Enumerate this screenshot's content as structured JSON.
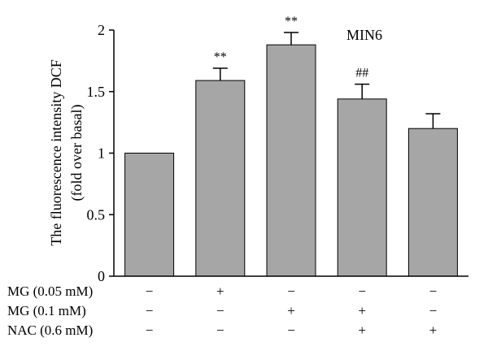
{
  "chart_data": {
    "type": "bar",
    "title": "MIN6",
    "ylabel_line1": "The fluorescence intensity DCF",
    "ylabel_line2": "(fold over basal)",
    "ylim": [
      0,
      2
    ],
    "yticks": [
      0,
      0.5,
      1,
      1.5,
      2
    ],
    "ytick_labels": [
      "0",
      "0.5",
      "1",
      "1.5",
      "2"
    ],
    "values": [
      1.0,
      1.59,
      1.88,
      1.44,
      1.2
    ],
    "errors": [
      0,
      0.1,
      0.1,
      0.12,
      0.12
    ],
    "significance": [
      "",
      "**",
      "**",
      "##",
      ""
    ],
    "bar_color": "#a6a6a6",
    "grid": false,
    "conditions": [
      {
        "label": "MG (0.05 mM)",
        "signs": [
          "−",
          "+",
          "−",
          "−",
          "−"
        ]
      },
      {
        "label": "MG (0.1 mM)",
        "signs": [
          "−",
          "−",
          "+",
          "+",
          "−"
        ]
      },
      {
        "label": "NAC (0.6 mM)",
        "signs": [
          "−",
          "−",
          "−",
          "+",
          "+"
        ]
      }
    ]
  }
}
